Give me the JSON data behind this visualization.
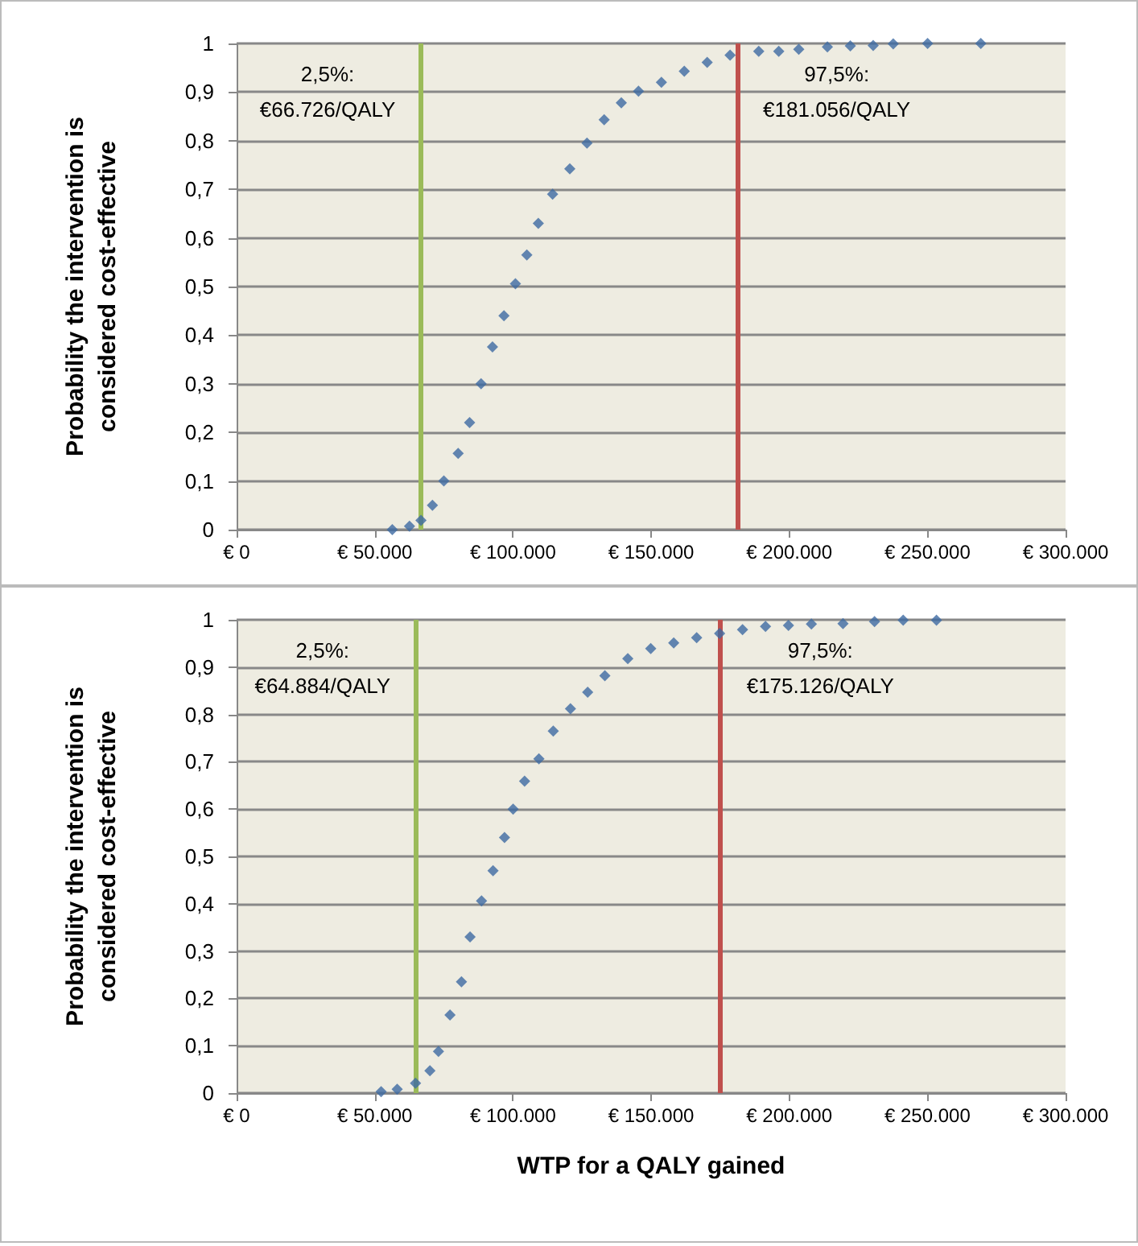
{
  "chart_data": [
    {
      "type": "scatter",
      "ylabel": "Probability the intervention is considered cost-effective",
      "color": "#3d6aa3",
      "marker": "diamond",
      "grid": "y",
      "x": [
        56350,
        62570,
        66710,
        70860,
        75000,
        80180,
        84320,
        88470,
        92610,
        96750,
        100900,
        105040,
        109180,
        114360,
        120580,
        126800,
        133010,
        139230,
        145440,
        153730,
        162010,
        170300,
        178590,
        188950,
        196200,
        203450,
        213800,
        222100,
        230380,
        237630,
        250060,
        269330
      ],
      "values": [
        0.0,
        0.007,
        0.019,
        0.05,
        0.1,
        0.157,
        0.22,
        0.3,
        0.376,
        0.44,
        0.506,
        0.565,
        0.63,
        0.69,
        0.742,
        0.795,
        0.843,
        0.878,
        0.902,
        0.92,
        0.943,
        0.961,
        0.976,
        0.984,
        0.984,
        0.988,
        0.993,
        0.995,
        0.996,
        0.999,
        1.0,
        1.0
      ],
      "xlim": [
        0,
        300000
      ],
      "ylim": [
        0,
        1
      ],
      "xticks": [
        {
          "value": 0,
          "label": "€ 0"
        },
        {
          "value": 50000,
          "label": "€ 50.000"
        },
        {
          "value": 100000,
          "label": "€ 100.000"
        },
        {
          "value": 150000,
          "label": "€ 150.000"
        },
        {
          "value": 200000,
          "label": "€ 200.000"
        },
        {
          "value": 250000,
          "label": "€ 250.000"
        },
        {
          "value": 300000,
          "label": "€ 300.000"
        }
      ],
      "yticks": [
        {
          "value": 0,
          "label": "0"
        },
        {
          "value": 0.1,
          "label": "0,1"
        },
        {
          "value": 0.2,
          "label": "0,2"
        },
        {
          "value": 0.3,
          "label": "0,3"
        },
        {
          "value": 0.4,
          "label": "0,4"
        },
        {
          "value": 0.5,
          "label": "0,5"
        },
        {
          "value": 0.6,
          "label": "0,6"
        },
        {
          "value": 0.7,
          "label": "0,7"
        },
        {
          "value": 0.8,
          "label": "0,8"
        },
        {
          "value": 0.9,
          "label": "0,9"
        },
        {
          "value": 1,
          "label": "1"
        }
      ],
      "ref_lines": [
        {
          "axis": "x",
          "value": 66726,
          "label": "2,5%: €66.726/QALY",
          "color": "#9bbb59"
        },
        {
          "axis": "x",
          "value": 181056,
          "label": "97,5%: €181.056/QALY",
          "color": "#c0504d"
        }
      ]
    },
    {
      "type": "scatter",
      "xlabel": "WTP for a QALY gained",
      "ylabel": "Probability the intervention is considered cost-effective",
      "color": "#3d6aa3",
      "marker": "diamond",
      "grid": "y",
      "x": [
        52300,
        58100,
        64750,
        69950,
        73060,
        77220,
        81370,
        84490,
        88640,
        92800,
        96950,
        100060,
        104210,
        109400,
        114590,
        120820,
        127040,
        133270,
        141580,
        149880,
        158190,
        166490,
        174800,
        183100,
        191410,
        199720,
        208020,
        219440,
        230860,
        241240,
        253280
      ],
      "values": [
        0.003,
        0.008,
        0.021,
        0.047,
        0.088,
        0.165,
        0.235,
        0.33,
        0.406,
        0.47,
        0.54,
        0.6,
        0.659,
        0.706,
        0.765,
        0.812,
        0.847,
        0.882,
        0.918,
        0.939,
        0.951,
        0.962,
        0.971,
        0.979,
        0.986,
        0.988,
        0.991,
        0.992,
        0.996,
        0.999,
        0.999
      ],
      "xlim": [
        0,
        300000
      ],
      "ylim": [
        0,
        1
      ],
      "xticks": [
        {
          "value": 0,
          "label": "€ 0"
        },
        {
          "value": 50000,
          "label": "€ 50.000"
        },
        {
          "value": 100000,
          "label": "€ 100.000"
        },
        {
          "value": 150000,
          "label": "€ 150.000"
        },
        {
          "value": 200000,
          "label": "€ 200.000"
        },
        {
          "value": 250000,
          "label": "€ 250.000"
        },
        {
          "value": 300000,
          "label": "€ 300.000"
        }
      ],
      "yticks": [
        {
          "value": 0,
          "label": "0"
        },
        {
          "value": 0.1,
          "label": "0,1"
        },
        {
          "value": 0.2,
          "label": "0,2"
        },
        {
          "value": 0.3,
          "label": "0,3"
        },
        {
          "value": 0.4,
          "label": "0,4"
        },
        {
          "value": 0.5,
          "label": "0,5"
        },
        {
          "value": 0.6,
          "label": "0,6"
        },
        {
          "value": 0.7,
          "label": "0,7"
        },
        {
          "value": 0.8,
          "label": "0,8"
        },
        {
          "value": 0.9,
          "label": "0,9"
        },
        {
          "value": 1,
          "label": "1"
        }
      ],
      "ref_lines": [
        {
          "axis": "x",
          "value": 64884,
          "label": "2,5%: €64.884/QALY",
          "color": "#9bbb59"
        },
        {
          "axis": "x",
          "value": 175126,
          "label": "97,5%: €175.126/QALY",
          "color": "#c0504d"
        }
      ]
    }
  ]
}
